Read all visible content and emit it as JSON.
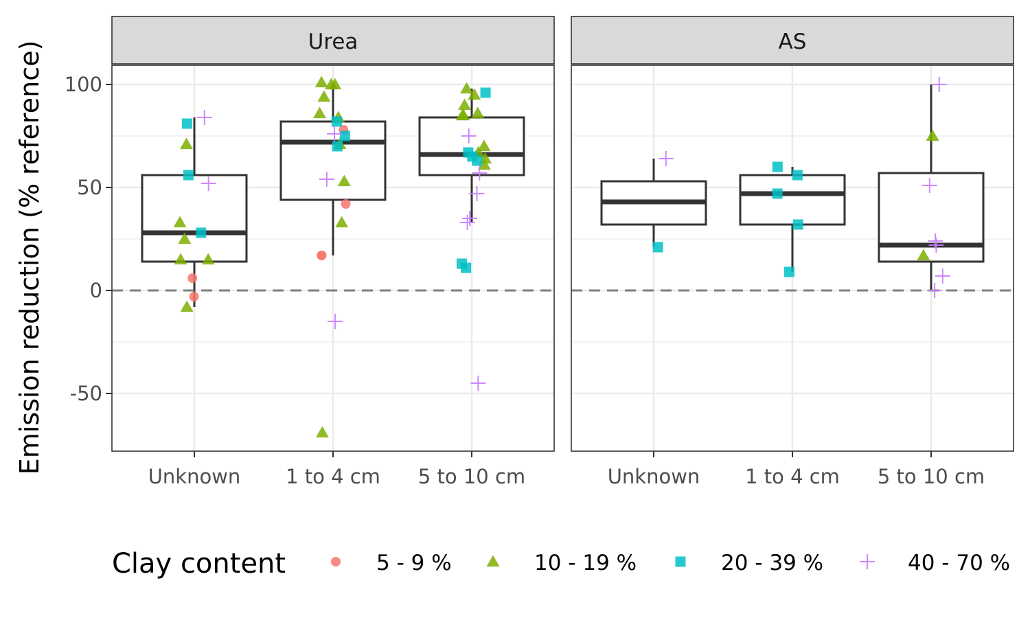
{
  "chart_data": {
    "type": "boxplot",
    "ylabel": "Emission reduction (% reference)",
    "ylim": [
      -78,
      109
    ],
    "yticks": [
      -50,
      0,
      50,
      100
    ],
    "reference_line": 0,
    "categories": [
      "Unknown",
      "1 to 4 cm",
      "5 to 10 cm"
    ],
    "panels": [
      {
        "name": "Urea",
        "boxes": [
          {
            "category": "Unknown",
            "min": -8,
            "q1": 14,
            "median": 28,
            "q3": 56,
            "max": 84
          },
          {
            "category": "1 to 4 cm",
            "min": 17,
            "q1": 44,
            "median": 72,
            "q3": 82,
            "max": 100
          },
          {
            "category": "5 to 10 cm",
            "min": 33,
            "q1": 56,
            "median": 66,
            "q3": 84,
            "max": 98
          }
        ],
        "points": [
          {
            "category": "Unknown",
            "clay": "5 - 9 %",
            "y": 6
          },
          {
            "category": "Unknown",
            "clay": "5 - 9 %",
            "y": -3
          },
          {
            "category": "Unknown",
            "clay": "10 - 19 %",
            "y": 71
          },
          {
            "category": "Unknown",
            "clay": "10 - 19 %",
            "y": 33
          },
          {
            "category": "Unknown",
            "clay": "10 - 19 %",
            "y": 25
          },
          {
            "category": "Unknown",
            "clay": "10 - 19 %",
            "y": 15
          },
          {
            "category": "Unknown",
            "clay": "10 - 19 %",
            "y": 15
          },
          {
            "category": "Unknown",
            "clay": "10 - 19 %",
            "y": -8
          },
          {
            "category": "Unknown",
            "clay": "20 - 39 %",
            "y": 81
          },
          {
            "category": "Unknown",
            "clay": "20 - 39 %",
            "y": 56
          },
          {
            "category": "Unknown",
            "clay": "20 - 39 %",
            "y": 28
          },
          {
            "category": "Unknown",
            "clay": "40 - 70 %",
            "y": 84
          },
          {
            "category": "Unknown",
            "clay": "40 - 70 %",
            "y": 52
          },
          {
            "category": "1 to 4 cm",
            "clay": "5 - 9 %",
            "y": 78
          },
          {
            "category": "1 to 4 cm",
            "clay": "5 - 9 %",
            "y": 42
          },
          {
            "category": "1 to 4 cm",
            "clay": "5 - 9 %",
            "y": 17
          },
          {
            "category": "1 to 4 cm",
            "clay": "5 - 9 %",
            "y": 17
          },
          {
            "category": "1 to 4 cm",
            "clay": "10 - 19 %",
            "y": 100
          },
          {
            "category": "1 to 4 cm",
            "clay": "10 - 19 %",
            "y": 101
          },
          {
            "category": "1 to 4 cm",
            "clay": "10 - 19 %",
            "y": 100
          },
          {
            "category": "1 to 4 cm",
            "clay": "10 - 19 %",
            "y": 94
          },
          {
            "category": "1 to 4 cm",
            "clay": "10 - 19 %",
            "y": 86
          },
          {
            "category": "1 to 4 cm",
            "clay": "10 - 19 %",
            "y": 84
          },
          {
            "category": "1 to 4 cm",
            "clay": "10 - 19 %",
            "y": 71
          },
          {
            "category": "1 to 4 cm",
            "clay": "10 - 19 %",
            "y": 53
          },
          {
            "category": "1 to 4 cm",
            "clay": "10 - 19 %",
            "y": 33
          },
          {
            "category": "1 to 4 cm",
            "clay": "10 - 19 %",
            "y": -69
          },
          {
            "category": "1 to 4 cm",
            "clay": "20 - 39 %",
            "y": 82
          },
          {
            "category": "1 to 4 cm",
            "clay": "20 - 39 %",
            "y": 75
          },
          {
            "category": "1 to 4 cm",
            "clay": "20 - 39 %",
            "y": 70
          },
          {
            "category": "1 to 4 cm",
            "clay": "40 - 70 %",
            "y": 76
          },
          {
            "category": "1 to 4 cm",
            "clay": "40 - 70 %",
            "y": 54
          },
          {
            "category": "1 to 4 cm",
            "clay": "40 - 70 %",
            "y": -15
          },
          {
            "category": "5 to 10 cm",
            "clay": "10 - 19 %",
            "y": 98
          },
          {
            "category": "5 to 10 cm",
            "clay": "10 - 19 %",
            "y": 95
          },
          {
            "category": "5 to 10 cm",
            "clay": "10 - 19 %",
            "y": 90
          },
          {
            "category": "5 to 10 cm",
            "clay": "10 - 19 %",
            "y": 86
          },
          {
            "category": "5 to 10 cm",
            "clay": "10 - 19 %",
            "y": 85
          },
          {
            "category": "5 to 10 cm",
            "clay": "10 - 19 %",
            "y": 85
          },
          {
            "category": "5 to 10 cm",
            "clay": "10 - 19 %",
            "y": 70
          },
          {
            "category": "5 to 10 cm",
            "clay": "10 - 19 %",
            "y": 67
          },
          {
            "category": "5 to 10 cm",
            "clay": "10 - 19 %",
            "y": 64
          },
          {
            "category": "5 to 10 cm",
            "clay": "10 - 19 %",
            "y": 61
          },
          {
            "category": "5 to 10 cm",
            "clay": "20 - 39 %",
            "y": 96
          },
          {
            "category": "5 to 10 cm",
            "clay": "20 - 39 %",
            "y": 67
          },
          {
            "category": "5 to 10 cm",
            "clay": "20 - 39 %",
            "y": 65
          },
          {
            "category": "5 to 10 cm",
            "clay": "20 - 39 %",
            "y": 63
          },
          {
            "category": "5 to 10 cm",
            "clay": "20 - 39 %",
            "y": 13
          },
          {
            "category": "5 to 10 cm",
            "clay": "20 - 39 %",
            "y": 11
          },
          {
            "category": "5 to 10 cm",
            "clay": "40 - 70 %",
            "y": 75
          },
          {
            "category": "5 to 10 cm",
            "clay": "40 - 70 %",
            "y": 57
          },
          {
            "category": "5 to 10 cm",
            "clay": "40 - 70 %",
            "y": 47
          },
          {
            "category": "5 to 10 cm",
            "clay": "40 - 70 %",
            "y": 35
          },
          {
            "category": "5 to 10 cm",
            "clay": "40 - 70 %",
            "y": 33
          },
          {
            "category": "5 to 10 cm",
            "clay": "40 - 70 %",
            "y": -45
          }
        ]
      },
      {
        "name": "AS",
        "boxes": [
          {
            "category": "Unknown",
            "min": 21,
            "q1": 32,
            "median": 43,
            "q3": 53,
            "max": 64
          },
          {
            "category": "1 to 4 cm",
            "min": 9,
            "q1": 32,
            "median": 47,
            "q3": 56,
            "max": 60
          },
          {
            "category": "5 to 10 cm",
            "min": 0,
            "q1": 14,
            "median": 22,
            "q3": 57,
            "max": 100
          }
        ],
        "points": [
          {
            "category": "Unknown",
            "clay": "20 - 39 %",
            "y": 21
          },
          {
            "category": "Unknown",
            "clay": "40 - 70 %",
            "y": 64
          },
          {
            "category": "1 to 4 cm",
            "clay": "20 - 39 %",
            "y": 60
          },
          {
            "category": "1 to 4 cm",
            "clay": "20 - 39 %",
            "y": 56
          },
          {
            "category": "1 to 4 cm",
            "clay": "20 - 39 %",
            "y": 47
          },
          {
            "category": "1 to 4 cm",
            "clay": "20 - 39 %",
            "y": 32
          },
          {
            "category": "1 to 4 cm",
            "clay": "20 - 39 %",
            "y": 9
          },
          {
            "category": "5 to 10 cm",
            "clay": "10 - 19 %",
            "y": 75
          },
          {
            "category": "5 to 10 cm",
            "clay": "10 - 19 %",
            "y": 17
          },
          {
            "category": "5 to 10 cm",
            "clay": "40 - 70 %",
            "y": 100
          },
          {
            "category": "5 to 10 cm",
            "clay": "40 - 70 %",
            "y": 51
          },
          {
            "category": "5 to 10 cm",
            "clay": "40 - 70 %",
            "y": 24
          },
          {
            "category": "5 to 10 cm",
            "clay": "40 - 70 %",
            "y": 22
          },
          {
            "category": "5 to 10 cm",
            "clay": "40 - 70 %",
            "y": 7
          },
          {
            "category": "5 to 10 cm",
            "clay": "40 - 70 %",
            "y": 0
          }
        ]
      }
    ],
    "legend": {
      "title": "Clay content",
      "placement": "bottom",
      "items": [
        {
          "label": "5 - 9 %",
          "shape": "circle",
          "color": "#F8766D"
        },
        {
          "label": "10 - 19 %",
          "shape": "triangle",
          "color": "#7CAE00"
        },
        {
          "label": "20 - 39 %",
          "shape": "square",
          "color": "#00BFC4"
        },
        {
          "label": "40 - 70 %",
          "shape": "plus",
          "color": "#C77CFF"
        }
      ]
    },
    "grid": true
  }
}
